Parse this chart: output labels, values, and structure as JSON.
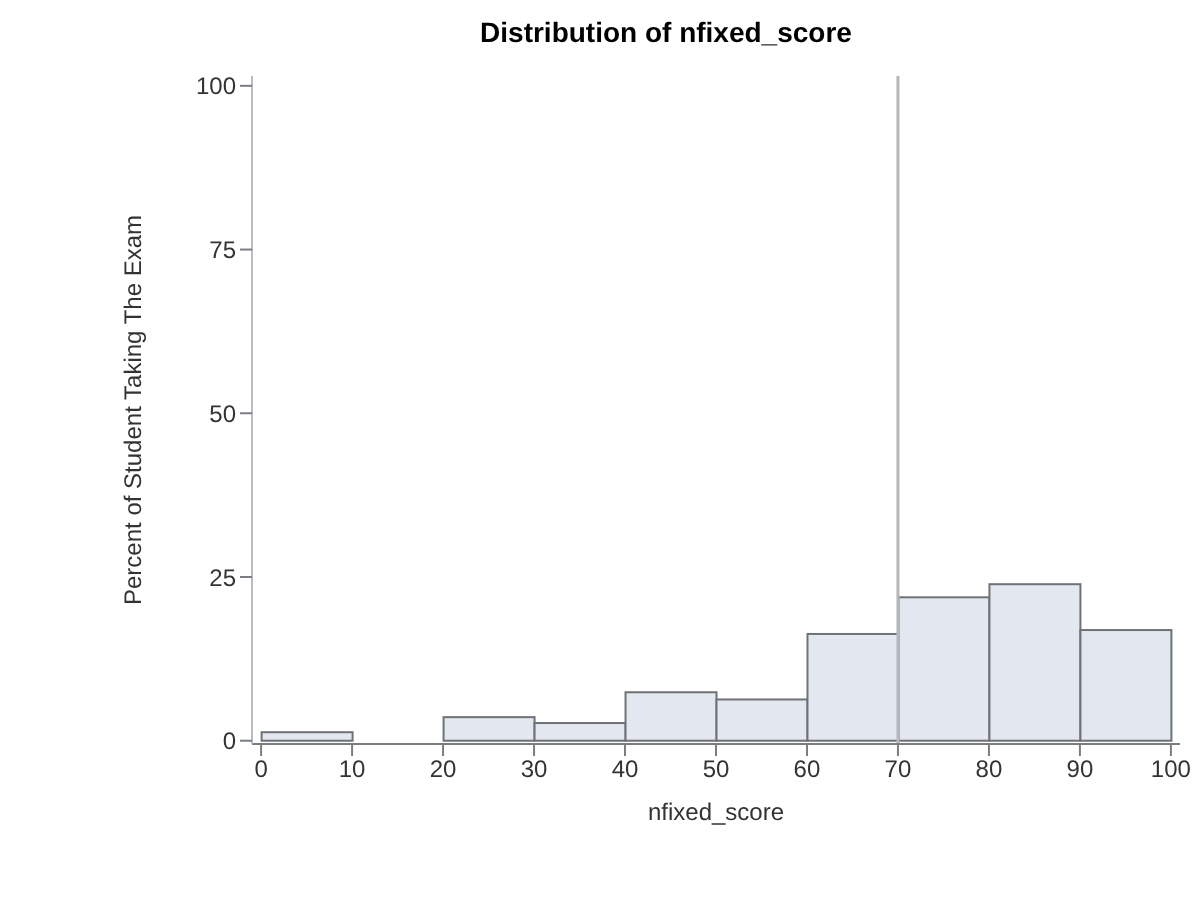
{
  "chart_data": {
    "type": "histogram",
    "title": "Distribution of nfixed_score",
    "xlabel": "nfixed_score",
    "ylabel": "Percent of Student Taking The Exam",
    "bins": [
      0,
      10,
      20,
      30,
      40,
      50,
      60,
      70,
      80,
      90,
      100
    ],
    "values": [
      1.3,
      0,
      3.6,
      2.7,
      7.4,
      6.3,
      16.3,
      21.9,
      23.9,
      16.9
    ],
    "color": "#e3e7f0",
    "xlim": [
      -1,
      101
    ],
    "xticks": [
      0,
      10,
      20,
      30,
      40,
      50,
      60,
      70,
      80,
      90,
      100
    ],
    "ylim": [
      -0.5,
      101.5
    ],
    "yticks": [
      0,
      25,
      50,
      75,
      100
    ],
    "ref_lines": [
      {
        "axis": "x",
        "value": 70,
        "color": "#b4b8bc"
      }
    ],
    "grid": false,
    "legend": false
  }
}
